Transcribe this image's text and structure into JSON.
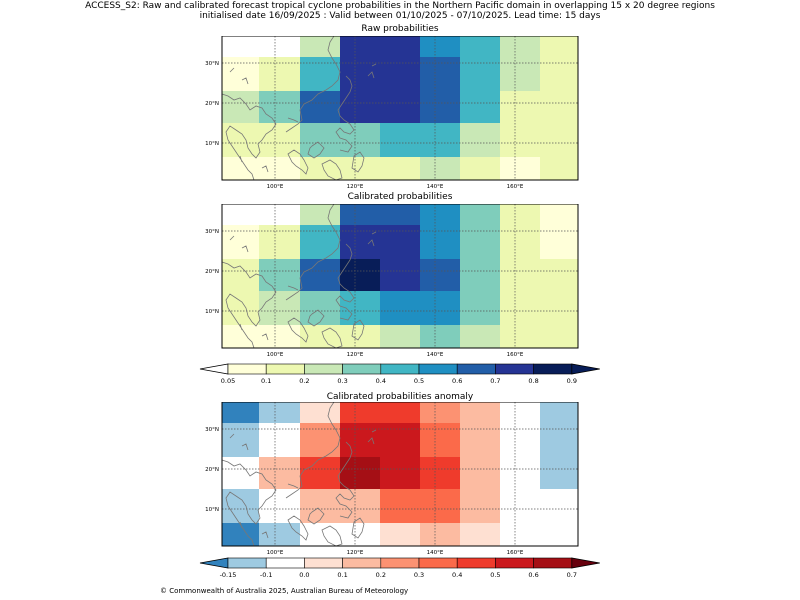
{
  "header": {
    "line1": "ACCESS_S2: Raw and calibrated forecast tropical cyclone probabilities in the Northern Pacific domain in overlapping 15 x 20 degree regions",
    "line2": "initialised date 16/09/2025 :  Valid between 01/10/2025 - 07/10/2025. Lead time: 15 days"
  },
  "axes": {
    "lon_labels": [
      "100°E",
      "120°E",
      "140°E",
      "160°E"
    ],
    "lat_labels": [
      "30°N",
      "20°N",
      "10°N"
    ]
  },
  "panels": {
    "raw": {
      "title": "Raw probabilities",
      "cells": [
        [
          "#ffffff",
          "#ffffff",
          "#c9e8b6",
          "#253494",
          "#253494",
          "#1f8fc2",
          "#41b6c4",
          "#c9e8b6",
          "#edf8b1"
        ],
        [
          "#ffffd9",
          "#edf8b1",
          "#41b6c4",
          "#253494",
          "#253494",
          "#225ea8",
          "#41b6c4",
          "#c9e8b6",
          "#edf8b1"
        ],
        [
          "#c9e8b6",
          "#7fcdbb",
          "#225ea8",
          "#253494",
          "#253494",
          "#225ea8",
          "#41b6c4",
          "#edf8b1",
          "#edf8b1"
        ],
        [
          "#edf8b1",
          "#edf8b1",
          "#7fcdbb",
          "#7fcdbb",
          "#41b6c4",
          "#41b6c4",
          "#c9e8b6",
          "#edf8b1",
          "#edf8b1"
        ],
        [
          "#ffffd9",
          "#ffffd9",
          "#edf8b1",
          "#edf8b1",
          "#edf8b1",
          "#c9e8b6",
          "#edf8b1",
          "#ffffd9",
          "#edf8b1"
        ]
      ]
    },
    "calibrated": {
      "title": "Calibrated probabilities",
      "cells": [
        [
          "#ffffff",
          "#ffffff",
          "#c9e8b6",
          "#225ea8",
          "#225ea8",
          "#1f8fc2",
          "#7fcdbb",
          "#edf8b1",
          "#ffffd9"
        ],
        [
          "#ffffd9",
          "#edf8b1",
          "#41b6c4",
          "#253494",
          "#253494",
          "#1f8fc2",
          "#7fcdbb",
          "#edf8b1",
          "#ffffd9"
        ],
        [
          "#edf8b1",
          "#7fcdbb",
          "#225ea8",
          "#081d58",
          "#253494",
          "#225ea8",
          "#7fcdbb",
          "#edf8b1",
          "#edf8b1"
        ],
        [
          "#edf8b1",
          "#c9e8b6",
          "#7fcdbb",
          "#41b6c4",
          "#1f8fc2",
          "#1f8fc2",
          "#7fcdbb",
          "#edf8b1",
          "#edf8b1"
        ],
        [
          "#ffffd9",
          "#ffffd9",
          "#edf8b1",
          "#edf8b1",
          "#c9e8b6",
          "#7fcdbb",
          "#c9e8b6",
          "#edf8b1",
          "#edf8b1"
        ]
      ]
    },
    "anomaly": {
      "title": "Calibrated probabilities anomaly",
      "cells": [
        [
          "#3182bd",
          "#9ecae1",
          "#fee0d2",
          "#ef3b2c",
          "#ef3b2c",
          "#fc9272",
          "#fcbba1",
          "#ffffff",
          "#9ecae1"
        ],
        [
          "#9ecae1",
          "#ffffff",
          "#fc9272",
          "#cb181d",
          "#cb181d",
          "#fb6a4a",
          "#fcbba1",
          "#ffffff",
          "#9ecae1"
        ],
        [
          "#ffffff",
          "#fcbba1",
          "#ef3b2c",
          "#a50f15",
          "#cb181d",
          "#ef3b2c",
          "#fcbba1",
          "#ffffff",
          "#9ecae1"
        ],
        [
          "#9ecae1",
          "#ffffff",
          "#fcbba1",
          "#fcbba1",
          "#fb6a4a",
          "#fb6a4a",
          "#fcbba1",
          "#ffffff",
          "#ffffff"
        ],
        [
          "#3182bd",
          "#9ecae1",
          "#ffffff",
          "#ffffff",
          "#fee0d2",
          "#fcbba1",
          "#fee0d2",
          "#ffffff",
          "#ffffff"
        ]
      ]
    }
  },
  "colorbars": {
    "probability": {
      "colors": [
        "#ffffd9",
        "#edf8b1",
        "#c9e8b6",
        "#7fcdbb",
        "#41b6c4",
        "#1f8fc2",
        "#225ea8",
        "#253494",
        "#081d58"
      ],
      "under": "#ffffff",
      "over": "#081d58",
      "ticks": [
        "0.05",
        "0.1",
        "0.2",
        "0.3",
        "0.4",
        "0.5",
        "0.6",
        "0.7",
        "0.8",
        "0.9"
      ]
    },
    "anomaly": {
      "colors": [
        "#9ecae1",
        "#ffffff",
        "#fee0d2",
        "#fcbba1",
        "#fc9272",
        "#fb6a4a",
        "#ef3b2c",
        "#cb181d",
        "#a50f15"
      ],
      "under": "#3182bd",
      "over": "#67000d",
      "ticks": [
        "-0.15",
        "-0.1",
        "0.0",
        "0.1",
        "0.2",
        "0.3",
        "0.4",
        "0.5",
        "0.6",
        "0.7"
      ]
    }
  },
  "footer": {
    "copyright": "© Commonwealth of Australia 2025, Australian Bureau of Meteorology"
  }
}
